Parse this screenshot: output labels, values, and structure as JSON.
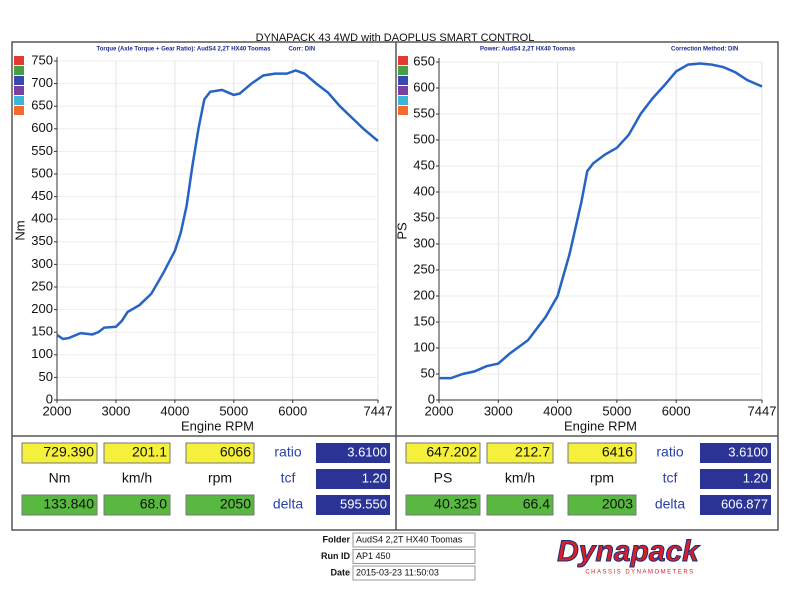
{
  "title": "DYNAPACK 43 4WD with DAOPLUS SMART CONTROL",
  "chart_data": [
    {
      "type": "line",
      "subtitle": "Torque (Axle Torque + Gear Ratio): AudS4 2,2T HX40 Toomas",
      "note": "Corr: DIN",
      "ylabel": "Nm",
      "xlabel": "Engine RPM",
      "color": "#2563c4",
      "grid": true,
      "x": [
        2000,
        2100,
        2200,
        2400,
        2600,
        2700,
        2800,
        3000,
        3100,
        3200,
        3400,
        3600,
        3800,
        4000,
        4100,
        4200,
        4300,
        4400,
        4500,
        4600,
        4800,
        5000,
        5100,
        5300,
        5500,
        5700,
        5900,
        6050,
        6200,
        6400,
        6600,
        6800,
        7000,
        7200,
        7447
      ],
      "values": [
        144,
        135,
        137,
        148,
        145,
        150,
        160,
        162,
        175,
        195,
        210,
        235,
        280,
        330,
        370,
        430,
        520,
        600,
        665,
        682,
        686,
        675,
        678,
        700,
        718,
        722,
        722,
        729,
        722,
        700,
        680,
        650,
        625,
        600,
        573
      ],
      "xlim": [
        2000,
        7447
      ],
      "xticks": [
        2000,
        3000,
        4000,
        5000,
        6000,
        7447
      ],
      "ylim": [
        0,
        750
      ],
      "yticks": [
        0,
        50,
        100,
        150,
        200,
        250,
        300,
        350,
        400,
        450,
        500,
        550,
        600,
        650,
        700,
        750
      ]
    },
    {
      "type": "line",
      "subtitle": "Power: AudS4 2,2T HX40 Toomas",
      "note": "Correction Method: DIN",
      "ylabel": "PS",
      "xlabel": "Engine RPM",
      "color": "#2563c4",
      "grid": true,
      "x": [
        2000,
        2200,
        2400,
        2600,
        2800,
        3000,
        3200,
        3500,
        3800,
        4000,
        4200,
        4400,
        4500,
        4600,
        4800,
        5000,
        5200,
        5400,
        5600,
        5800,
        6000,
        6200,
        6400,
        6600,
        6800,
        7000,
        7200,
        7447
      ],
      "values": [
        42,
        42,
        50,
        55,
        65,
        70,
        90,
        115,
        160,
        200,
        280,
        380,
        440,
        455,
        472,
        485,
        510,
        550,
        580,
        605,
        632,
        645,
        647,
        645,
        640,
        630,
        615,
        603
      ],
      "xlim": [
        2000,
        7447
      ],
      "xticks": [
        2000,
        3000,
        4000,
        5000,
        6000,
        7447
      ],
      "ylim": [
        0,
        650
      ],
      "yticks": [
        0,
        50,
        100,
        150,
        200,
        250,
        300,
        350,
        400,
        450,
        500,
        550,
        600,
        650
      ]
    }
  ],
  "readouts": [
    [
      [
        "729.390",
        "201.1",
        "6066",
        "ratio",
        "3.6100"
      ],
      [
        "Nm",
        "km/h",
        "rpm",
        "tcf",
        "1.20"
      ],
      [
        "133.840",
        "68.0",
        "2050",
        "delta",
        "595.550"
      ]
    ],
    [
      [
        "647.202",
        "212.7",
        "6416",
        "ratio",
        "3.6100"
      ],
      [
        "PS",
        "km/h",
        "rpm",
        "tcf",
        "1.20"
      ],
      [
        "40.325",
        "66.4",
        "2003",
        "delta",
        "606.877"
      ]
    ]
  ],
  "footer": {
    "rows": [
      [
        "Folder",
        "AudS4 2,2T HX40 Toomas"
      ],
      [
        "Run ID",
        "AP1 450"
      ],
      [
        "Date",
        "2015-03-23 11:50:03"
      ]
    ],
    "logo": "Dynapack",
    "tagline": "CHASSIS DYNAMOMETERS"
  }
}
